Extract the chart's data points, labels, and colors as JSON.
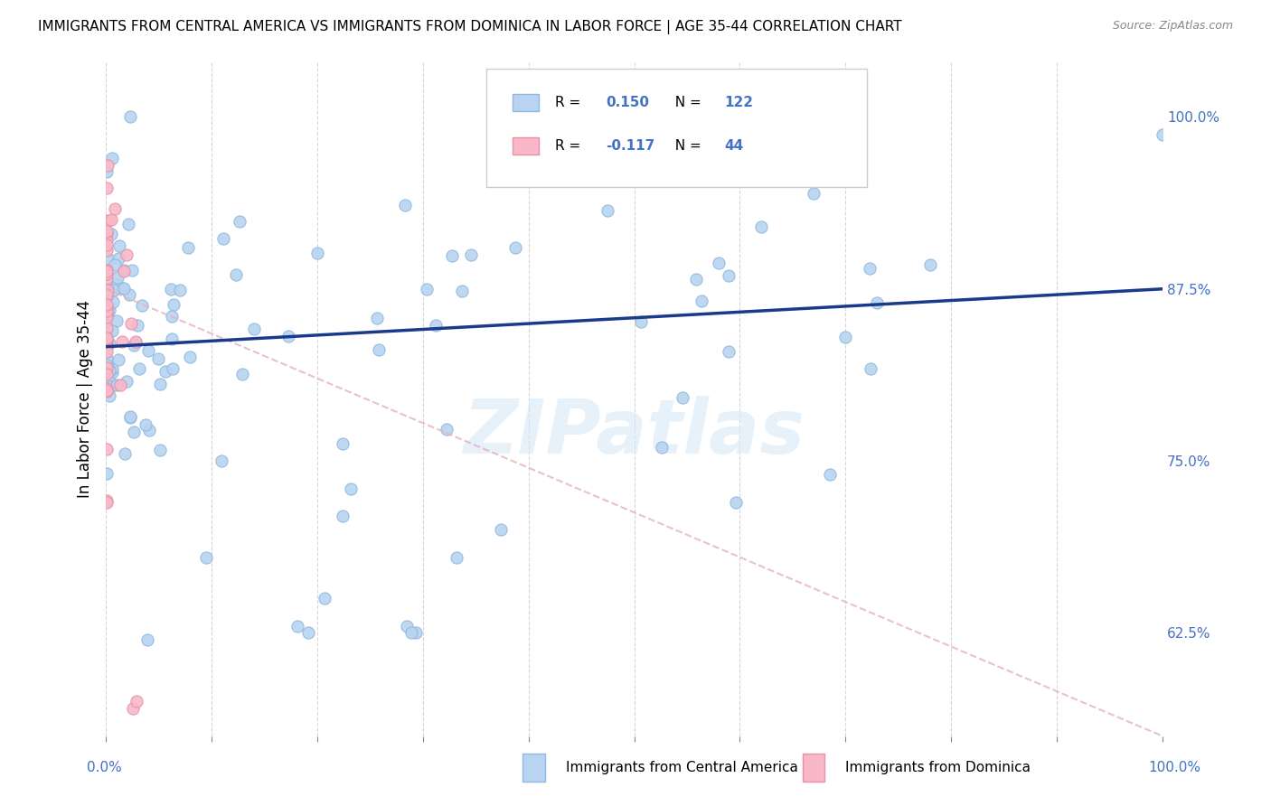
{
  "title": "IMMIGRANTS FROM CENTRAL AMERICA VS IMMIGRANTS FROM DOMINICA IN LABOR FORCE | AGE 35-44 CORRELATION CHART",
  "source": "Source: ZipAtlas.com",
  "ylabel": "In Labor Force | Age 35-44",
  "ytick_labels": [
    "62.5%",
    "75.0%",
    "87.5%",
    "100.0%"
  ],
  "ytick_values": [
    0.625,
    0.75,
    0.875,
    1.0
  ],
  "ymin": 0.55,
  "ymax": 1.04,
  "xmin": 0.0,
  "xmax": 1.0,
  "blue_face_color": "#b8d4f0",
  "blue_edge_color": "#90b8e0",
  "blue_line_color": "#1a3a8c",
  "pink_face_color": "#f8b8c8",
  "pink_edge_color": "#e890a8",
  "pink_line_color": "#e8b0c0",
  "R_blue": 0.15,
  "N_blue": 122,
  "R_pink": -0.117,
  "N_pink": 44,
  "legend_label_blue": "Immigrants from Central America",
  "legend_label_pink": "Immigrants from Dominica",
  "watermark": "ZIPatlas",
  "right_tick_color": "#4472c4",
  "xlabel_color": "#4472c4",
  "grid_color": "#cccccc",
  "title_fontsize": 11,
  "source_fontsize": 9,
  "tick_fontsize": 11,
  "legend_fontsize": 11
}
